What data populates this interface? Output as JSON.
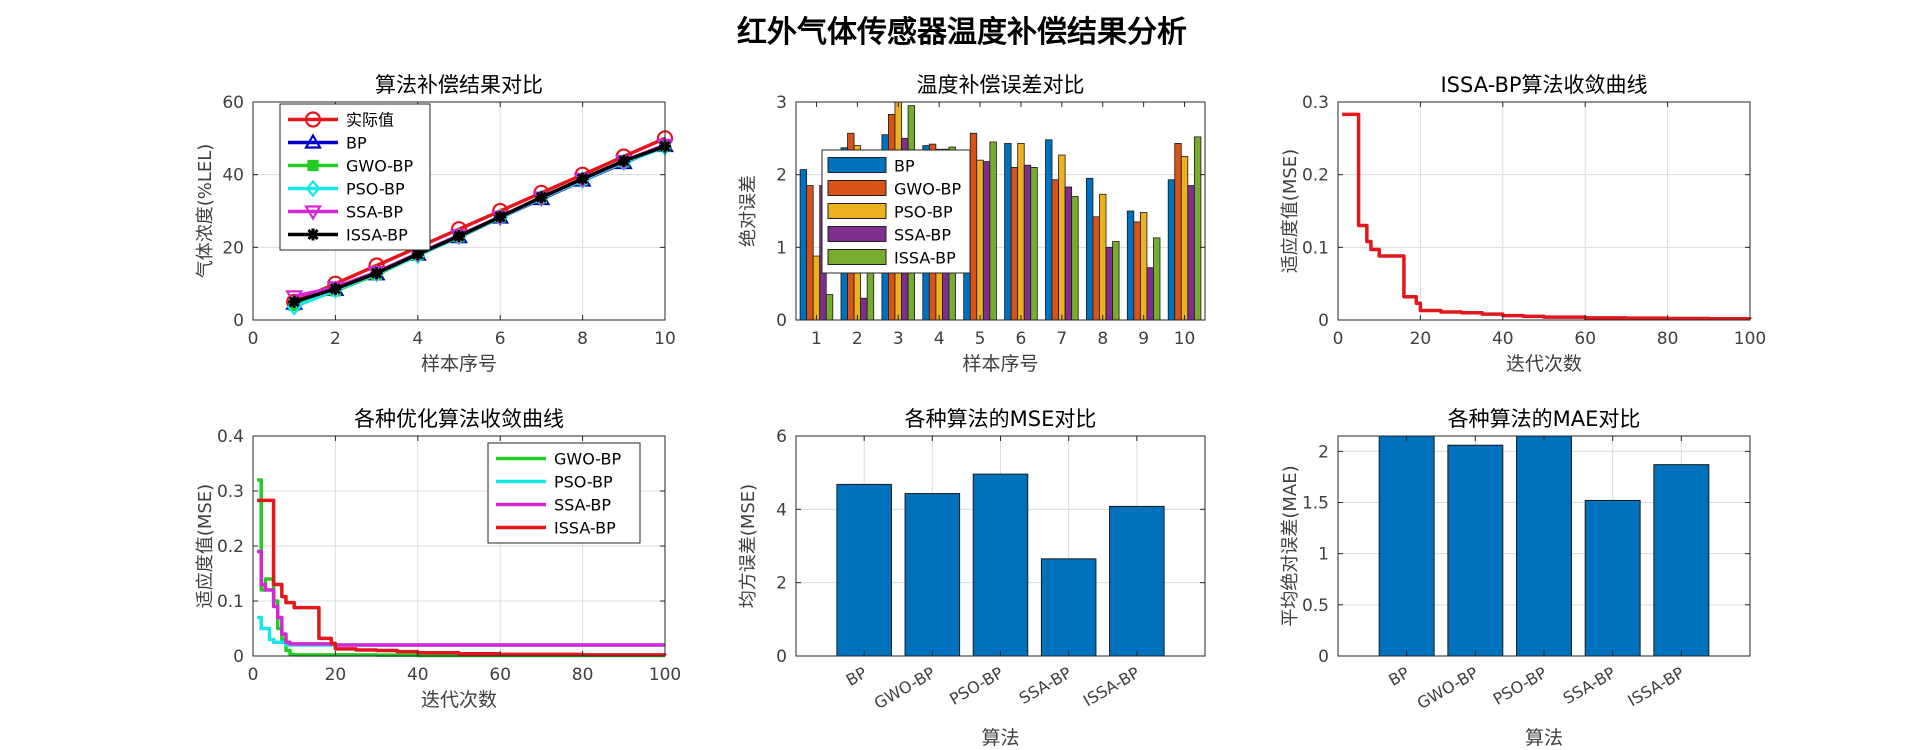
{
  "figure_title": "红外气体传感器温度补偿结果分析",
  "chart_data": [
    {
      "type": "line",
      "title": "算法补偿结果对比",
      "xlabel": "样本序号",
      "ylabel": "气体浓度(%LEL)",
      "xlim": [
        0,
        10
      ],
      "ylim": [
        0,
        60
      ],
      "xticks": [
        0,
        2,
        4,
        6,
        8,
        10
      ],
      "yticks": [
        0,
        20,
        40,
        60
      ],
      "grid": true,
      "legend_position": "top-left",
      "x": [
        1,
        2,
        3,
        4,
        5,
        6,
        7,
        8,
        9,
        10
      ],
      "series": [
        {
          "name": "实际值",
          "color": "#E3161B",
          "marker": "circle",
          "values": [
            5,
            10,
            15,
            20,
            25,
            30,
            35,
            40,
            45,
            50
          ]
        },
        {
          "name": "BP",
          "color": "#0000C8",
          "marker": "triangle",
          "values": [
            4.5,
            8.3,
            12.6,
            18.0,
            22.8,
            28.2,
            33.3,
            38.4,
            43.2,
            47.9
          ]
        },
        {
          "name": "GWO-BP",
          "color": "#22CC22",
          "marker": "square",
          "values": [
            4.0,
            8.0,
            12.5,
            17.8,
            22.9,
            28.3,
            33.6,
            38.6,
            43.5,
            47.8
          ]
        },
        {
          "name": "PSO-BP",
          "color": "#19E6E6",
          "marker": "diamond",
          "values": [
            3.6,
            8.2,
            12.7,
            17.7,
            23.0,
            28.2,
            33.5,
            38.5,
            43.4,
            47.6
          ]
        },
        {
          "name": "SSA-BP",
          "color": "#D426D4",
          "marker": "triangle-down",
          "values": [
            6.5,
            9.0,
            13.2,
            18.3,
            23.3,
            28.4,
            33.7,
            38.8,
            43.7,
            48.2
          ]
        },
        {
          "name": "ISSA-BP",
          "color": "#000000",
          "marker": "star",
          "values": [
            5.0,
            8.6,
            12.9,
            18.1,
            23.1,
            28.4,
            33.8,
            38.9,
            43.8,
            47.8
          ]
        }
      ]
    },
    {
      "type": "bar",
      "title": "温度补偿误差对比",
      "xlabel": "样本序号",
      "ylabel": "绝对误差",
      "ylim": [
        0,
        3
      ],
      "yticks": [
        0,
        1,
        2,
        3
      ],
      "grid": true,
      "legend_position": "top-left",
      "categories": [
        "1",
        "2",
        "3",
        "4",
        "5",
        "6",
        "7",
        "8",
        "9",
        "10"
      ],
      "series": [
        {
          "name": "BP",
          "color": "#0072BD",
          "values": [
            2.07,
            2.37,
            2.55,
            2.4,
            2.2,
            2.43,
            2.48,
            1.95,
            1.5,
            1.93
          ]
        },
        {
          "name": "GWO-BP",
          "color": "#D95319",
          "values": [
            1.85,
            2.57,
            2.83,
            2.42,
            2.57,
            2.1,
            1.93,
            1.42,
            1.35,
            2.43
          ]
        },
        {
          "name": "PSO-BP",
          "color": "#EDB120",
          "values": [
            0.88,
            2.4,
            3.05,
            2.35,
            2.2,
            2.43,
            2.27,
            1.73,
            1.48,
            2.25
          ]
        },
        {
          "name": "SSA-BP",
          "color": "#7E2F8E",
          "values": [
            1.85,
            0.3,
            2.5,
            2.35,
            2.18,
            2.13,
            1.83,
            1.0,
            0.72,
            1.85
          ]
        },
        {
          "name": "ISSA-BP",
          "color": "#77AC30",
          "values": [
            0.35,
            0.8,
            2.95,
            2.38,
            2.45,
            2.1,
            1.7,
            1.08,
            1.13,
            2.52
          ]
        }
      ]
    },
    {
      "type": "line",
      "title": "ISSA-BP算法收敛曲线",
      "xlabel": "迭代次数",
      "ylabel": "适应度值(MSE)",
      "xlim": [
        0,
        100
      ],
      "ylim": [
        0,
        0.3
      ],
      "xticks": [
        0,
        20,
        40,
        60,
        80,
        100
      ],
      "yticks": [
        0,
        0.1,
        0.2,
        0.3
      ],
      "grid": true,
      "series": [
        {
          "name": "ISSA-BP",
          "color": "#E3161B",
          "x": [
            1,
            2,
            3,
            4,
            5,
            6,
            7,
            8,
            9,
            10,
            15,
            16,
            17,
            18,
            19,
            20,
            25,
            30,
            35,
            40,
            45,
            50,
            60,
            70,
            80,
            90,
            100
          ],
          "values": [
            0.283,
            0.283,
            0.283,
            0.283,
            0.13,
            0.13,
            0.108,
            0.097,
            0.097,
            0.088,
            0.088,
            0.032,
            0.032,
            0.032,
            0.023,
            0.013,
            0.011,
            0.01,
            0.008,
            0.006,
            0.005,
            0.004,
            0.003,
            0.0025,
            0.002,
            0.0018,
            0.0015
          ]
        }
      ]
    },
    {
      "type": "line",
      "title": "各种优化算法收敛曲线",
      "xlabel": "迭代次数",
      "ylabel": "适应度值(MSE)",
      "xlim": [
        0,
        100
      ],
      "ylim": [
        0,
        0.4
      ],
      "xticks": [
        0,
        20,
        40,
        60,
        80,
        100
      ],
      "yticks": [
        0,
        0.1,
        0.2,
        0.3,
        0.4
      ],
      "grid": true,
      "legend_position": "top-right",
      "series": [
        {
          "name": "GWO-BP",
          "color": "#22CC22",
          "x": [
            1,
            2,
            3,
            4,
            5,
            6,
            7,
            8,
            9,
            10,
            20,
            30,
            40,
            60,
            80,
            100
          ],
          "values": [
            0.32,
            0.12,
            0.14,
            0.14,
            0.1,
            0.05,
            0.03,
            0.01,
            0.003,
            0.002,
            0.002,
            0.0015,
            0.001,
            0.001,
            0.001,
            0.001
          ]
        },
        {
          "name": "PSO-BP",
          "color": "#19E6E6",
          "x": [
            1,
            2,
            3,
            4,
            5,
            6,
            7,
            8,
            9,
            10,
            11,
            12,
            20,
            40,
            60,
            80,
            100
          ],
          "values": [
            0.07,
            0.05,
            0.05,
            0.03,
            0.025,
            0.025,
            0.025,
            0.02,
            0.02,
            0.02,
            0.02,
            0.02,
            0.02,
            0.02,
            0.02,
            0.02,
            0.02
          ]
        },
        {
          "name": "SSA-BP",
          "color": "#D426D4",
          "x": [
            1,
            2,
            3,
            4,
            5,
            6,
            7,
            8,
            9,
            10,
            20,
            40,
            60,
            80,
            100
          ],
          "values": [
            0.19,
            0.13,
            0.12,
            0.12,
            0.09,
            0.07,
            0.04,
            0.025,
            0.022,
            0.022,
            0.02,
            0.02,
            0.02,
            0.02,
            0.02
          ]
        },
        {
          "name": "ISSA-BP",
          "color": "#E3161B",
          "x": [
            1,
            2,
            3,
            4,
            5,
            6,
            7,
            8,
            9,
            10,
            15,
            16,
            17,
            18,
            19,
            20,
            25,
            30,
            35,
            40,
            50,
            60,
            80,
            100
          ],
          "values": [
            0.283,
            0.283,
            0.283,
            0.283,
            0.13,
            0.13,
            0.108,
            0.097,
            0.097,
            0.088,
            0.088,
            0.032,
            0.032,
            0.032,
            0.023,
            0.013,
            0.011,
            0.01,
            0.008,
            0.006,
            0.004,
            0.003,
            0.002,
            0.0015
          ]
        }
      ]
    },
    {
      "type": "bar",
      "title": "各种算法的MSE对比",
      "xlabel": "算法",
      "ylabel": "均方误差(MSE)",
      "ylim": [
        0,
        6
      ],
      "yticks": [
        0,
        2,
        4,
        6
      ],
      "grid": true,
      "color": "#0072BD",
      "categories": [
        "BP",
        "GWO-BP",
        "PSO-BP",
        "SSA-BP",
        "ISSA-BP"
      ],
      "values": [
        4.68,
        4.43,
        4.96,
        2.65,
        4.08
      ]
    },
    {
      "type": "bar",
      "title": "各种算法的MAE对比",
      "xlabel": "算法",
      "ylabel": "平均绝对误差(MAE)",
      "ylim": [
        0,
        2.15
      ],
      "yticks": [
        0,
        0.5,
        1,
        1.5,
        2
      ],
      "grid": true,
      "color": "#0072BD",
      "categories": [
        "BP",
        "GWO-BP",
        "PSO-BP",
        "SSA-BP",
        "ISSA-BP"
      ],
      "values": [
        2.15,
        2.06,
        2.15,
        1.52,
        1.87
      ]
    }
  ]
}
